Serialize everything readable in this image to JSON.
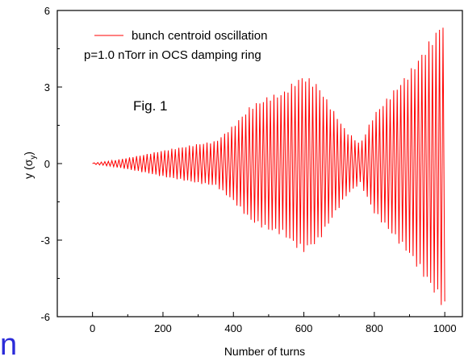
{
  "chart_data": {
    "type": "line",
    "xlabel": "Number of turns",
    "ylabel_main": "y (σ",
    "ylabel_sub": "y",
    "ylabel_close": ")",
    "xlim": [
      -100,
      1050
    ],
    "ylim": [
      -6,
      6
    ],
    "x_ticks": [
      0,
      200,
      400,
      600,
      800,
      1000
    ],
    "x_tick_labels": [
      "0",
      "200",
      "400",
      "600",
      "800",
      "1000"
    ],
    "y_ticks": [
      -6,
      -3,
      0,
      3,
      6
    ],
    "y_tick_labels": [
      "-6",
      "-3",
      "0",
      "3",
      "6"
    ],
    "grid": false,
    "legend_position": "top-left",
    "series": [
      {
        "name": "bunch centroid oscillation",
        "color": "#ff0000",
        "oscillation_half_period_turns": 5,
        "amplitude_envelope": {
          "x": [
            0,
            50,
            100,
            150,
            200,
            250,
            300,
            350,
            400,
            450,
            500,
            540,
            580,
            600,
            640,
            680,
            720,
            760,
            800,
            850,
            900,
            950,
            1000
          ],
          "y": [
            0.02,
            0.1,
            0.22,
            0.35,
            0.5,
            0.62,
            0.75,
            0.85,
            1.45,
            2.2,
            2.55,
            2.7,
            3.2,
            3.35,
            3.0,
            2.1,
            1.25,
            0.75,
            1.9,
            2.7,
            3.5,
            4.5,
            5.55
          ]
        }
      }
    ],
    "legend_note": "p=1.0 nTorr in OCS damping ring",
    "annotation": "Fig. 1"
  },
  "edge_glyph": "n"
}
